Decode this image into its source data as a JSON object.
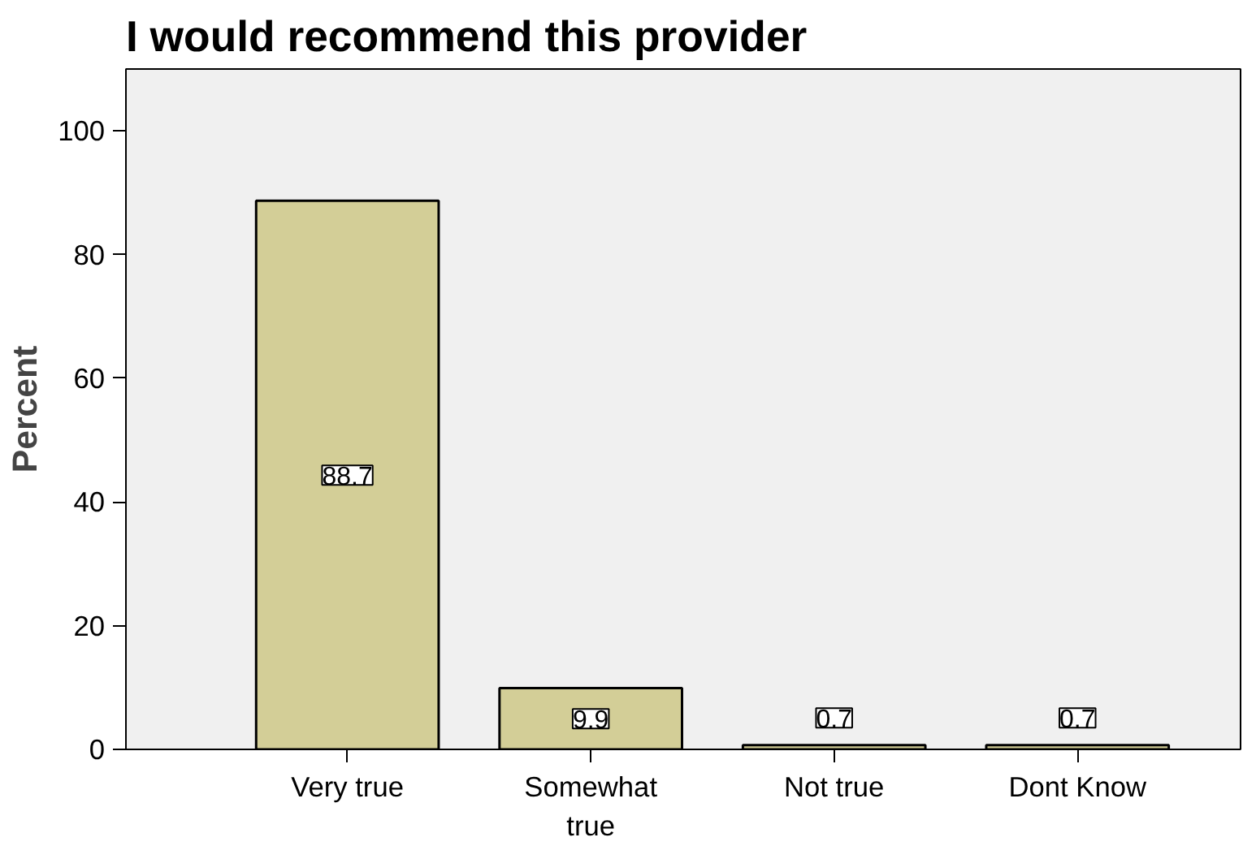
{
  "chart_data": {
    "type": "bar",
    "title": "I would recommend this provider",
    "ylabel": "Percent",
    "categories": [
      "Very true",
      "Somewhat\ntrue",
      "Not true",
      "Dont Know"
    ],
    "values": [
      88.7,
      9.9,
      0.7,
      0.7
    ],
    "color": "#d3ce97",
    "ylim": [
      0,
      110
    ],
    "yticks": [
      0,
      20,
      40,
      60,
      80,
      100
    ],
    "grid": false,
    "data_labels": true
  }
}
